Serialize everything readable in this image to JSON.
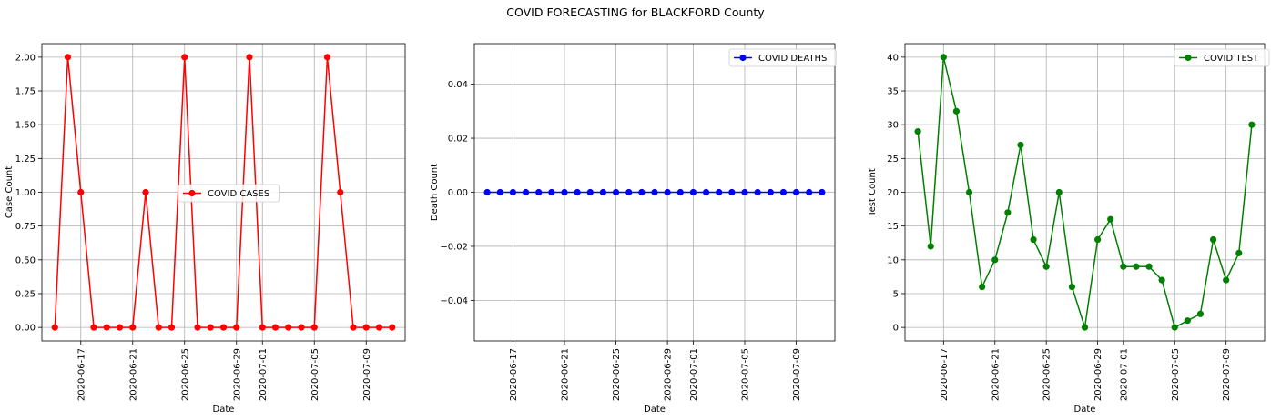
{
  "figure": {
    "title": "COVID FORECASTING for BLACKFORD County"
  },
  "chart_data": [
    {
      "type": "line",
      "xlabel": "Date",
      "ylabel": "Case Count",
      "x": [
        "2020-06-15",
        "2020-06-16",
        "2020-06-17",
        "2020-06-18",
        "2020-06-19",
        "2020-06-20",
        "2020-06-21",
        "2020-06-22",
        "2020-06-23",
        "2020-06-24",
        "2020-06-25",
        "2020-06-26",
        "2020-06-27",
        "2020-06-28",
        "2020-06-29",
        "2020-06-30",
        "2020-07-01",
        "2020-07-02",
        "2020-07-03",
        "2020-07-04",
        "2020-07-05",
        "2020-07-06",
        "2020-07-07",
        "2020-07-08",
        "2020-07-09",
        "2020-07-10",
        "2020-07-11"
      ],
      "series": [
        {
          "name": "COVID CASES",
          "color": "#ff0000",
          "values": [
            0,
            2,
            1,
            0,
            0,
            0,
            0,
            1,
            0,
            0,
            2,
            0,
            0,
            0,
            0,
            2,
            0,
            0,
            0,
            0,
            0,
            2,
            1,
            0,
            0,
            0,
            0
          ]
        }
      ],
      "xlim": [
        "2020-06-14T00:00",
        "2020-07-12T00:00"
      ],
      "ylim": [
        -0.1,
        2.1
      ],
      "xticks": [
        "2020-06-17",
        "2020-06-21",
        "2020-06-25",
        "2020-06-29",
        "2020-07-01",
        "2020-07-05",
        "2020-07-09"
      ],
      "yticks": [
        0,
        0.25,
        0.5,
        0.75,
        1.0,
        1.25,
        1.5,
        1.75,
        2.0
      ],
      "ytick_labels": [
        "0.00",
        "0.25",
        "0.50",
        "0.75",
        "1.00",
        "1.25",
        "1.50",
        "1.75",
        "2.00"
      ],
      "grid": true,
      "legend": "center-right"
    },
    {
      "type": "line",
      "xlabel": "Date",
      "ylabel": "Death Count",
      "x": [
        "2020-06-15",
        "2020-06-16",
        "2020-06-17",
        "2020-06-18",
        "2020-06-19",
        "2020-06-20",
        "2020-06-21",
        "2020-06-22",
        "2020-06-23",
        "2020-06-24",
        "2020-06-25",
        "2020-06-26",
        "2020-06-27",
        "2020-06-28",
        "2020-06-29",
        "2020-06-30",
        "2020-07-01",
        "2020-07-02",
        "2020-07-03",
        "2020-07-04",
        "2020-07-05",
        "2020-07-06",
        "2020-07-07",
        "2020-07-08",
        "2020-07-09",
        "2020-07-10",
        "2020-07-11"
      ],
      "series": [
        {
          "name": "COVID DEATHS",
          "color": "#0000ff",
          "values": [
            0,
            0,
            0,
            0,
            0,
            0,
            0,
            0,
            0,
            0,
            0,
            0,
            0,
            0,
            0,
            0,
            0,
            0,
            0,
            0,
            0,
            0,
            0,
            0,
            0,
            0,
            0
          ]
        }
      ],
      "xlim": [
        "2020-06-14T00:00",
        "2020-07-12T00:00"
      ],
      "ylim": [
        -0.055,
        0.055
      ],
      "xticks": [
        "2020-06-17",
        "2020-06-21",
        "2020-06-25",
        "2020-06-29",
        "2020-07-01",
        "2020-07-05",
        "2020-07-09"
      ],
      "yticks": [
        -0.04,
        -0.02,
        0.0,
        0.02,
        0.04
      ],
      "ytick_labels": [
        "−0.04",
        "−0.02",
        "0.00",
        "0.02",
        "0.04"
      ],
      "grid": true,
      "legend": "top-right"
    },
    {
      "type": "line",
      "xlabel": "Date",
      "ylabel": "Test Count",
      "x": [
        "2020-06-15",
        "2020-06-16",
        "2020-06-17",
        "2020-06-18",
        "2020-06-19",
        "2020-06-20",
        "2020-06-21",
        "2020-06-22",
        "2020-06-23",
        "2020-06-24",
        "2020-06-25",
        "2020-06-26",
        "2020-06-27",
        "2020-06-28",
        "2020-06-29",
        "2020-06-30",
        "2020-07-01",
        "2020-07-02",
        "2020-07-03",
        "2020-07-04",
        "2020-07-05",
        "2020-07-06",
        "2020-07-07",
        "2020-07-08",
        "2020-07-09",
        "2020-07-10",
        "2020-07-11"
      ],
      "series": [
        {
          "name": "COVID TEST",
          "color": "#008000",
          "values": [
            29,
            12,
            40,
            32,
            20,
            6,
            10,
            17,
            27,
            13,
            9,
            20,
            6,
            0,
            13,
            16,
            9,
            9,
            9,
            7,
            0,
            1,
            2,
            13,
            7,
            11,
            30
          ]
        }
      ],
      "xlim": [
        "2020-06-14T00:00",
        "2020-07-12T00:00"
      ],
      "ylim": [
        -2,
        42
      ],
      "xticks": [
        "2020-06-17",
        "2020-06-21",
        "2020-06-25",
        "2020-06-29",
        "2020-07-01",
        "2020-07-05",
        "2020-07-09"
      ],
      "yticks": [
        0,
        5,
        10,
        15,
        20,
        25,
        30,
        35,
        40
      ],
      "ytick_labels": [
        "0",
        "5",
        "10",
        "15",
        "20",
        "25",
        "30",
        "35",
        "40"
      ],
      "grid": true,
      "legend": "top-right"
    }
  ]
}
